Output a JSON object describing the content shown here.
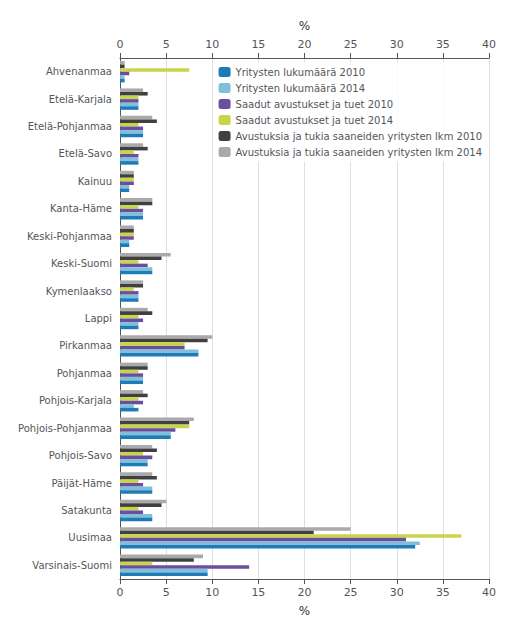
{
  "chart_data": {
    "type": "bar",
    "orientation": "horizontal",
    "xlabel": "%",
    "categories": [
      "Varsinais-Suomi",
      "Uusimaa",
      "Satakunta",
      "Päijät-Häme",
      "Pohjois-Savo",
      "Pohjois-Pohjanmaa",
      "Pohjois-Karjala",
      "Pohjanmaa",
      "Pirkanmaa",
      "Lappi",
      "Kymenlaakso",
      "Keski-Suomi",
      "Keski-Pohjanmaa",
      "Kanta-Häme",
      "Kainuu",
      "Etelä-Savo",
      "Etelä-Pohjanmaa",
      "Etelä-Karjala",
      "Ahvenanmaa"
    ],
    "series": [
      {
        "name": "Yritysten lukumäärä 2010",
        "color": "#1f7bb5",
        "values": [
          9.5,
          32.0,
          3.5,
          3.5,
          3.0,
          5.5,
          2.0,
          2.5,
          8.5,
          2.0,
          2.0,
          3.5,
          1.0,
          2.5,
          1.0,
          2.0,
          2.5,
          2.0,
          0.5
        ]
      },
      {
        "name": "Yritysten lukumäärä 2014",
        "color": "#7fbfda",
        "values": [
          9.5,
          32.5,
          3.5,
          3.5,
          3.0,
          5.5,
          1.5,
          2.5,
          8.5,
          2.0,
          2.0,
          3.5,
          1.0,
          2.5,
          1.0,
          2.0,
          2.5,
          2.0,
          0.5
        ]
      },
      {
        "name": "Saadut avustukset ja tuet 2010",
        "color": "#6b4f9e",
        "values": [
          14.0,
          31.0,
          2.5,
          2.5,
          3.5,
          6.0,
          2.5,
          2.5,
          7.0,
          2.5,
          2.0,
          3.0,
          1.5,
          2.5,
          1.5,
          2.0,
          2.5,
          2.0,
          1.0
        ]
      },
      {
        "name": "Saadut avustukset ja tuet 2014",
        "color": "#c8d44a",
        "values": [
          3.5,
          37.0,
          2.0,
          2.0,
          2.5,
          7.5,
          2.0,
          2.0,
          7.0,
          2.0,
          1.5,
          2.0,
          1.5,
          2.0,
          1.5,
          1.5,
          2.0,
          2.0,
          7.5
        ]
      },
      {
        "name": "Avustuksia ja tukia saaneiden yritysten lkm 2010",
        "color": "#404040",
        "values": [
          8.0,
          21.0,
          4.5,
          4.0,
          4.0,
          7.5,
          3.0,
          3.0,
          9.5,
          3.5,
          2.5,
          4.5,
          1.5,
          3.5,
          1.5,
          3.0,
          4.0,
          3.0,
          0.5
        ]
      },
      {
        "name": "Avustuksia ja tukia saaneiden yritysten lkm 2014",
        "color": "#aaaaaa",
        "values": [
          9.0,
          25.0,
          5.0,
          3.5,
          3.5,
          8.0,
          2.5,
          3.0,
          10.0,
          3.0,
          2.5,
          5.5,
          1.5,
          3.5,
          1.5,
          2.5,
          3.5,
          2.5,
          0.5
        ]
      }
    ],
    "xlim": [
      0,
      40
    ],
    "xticks": [
      0,
      5,
      10,
      15,
      20,
      25,
      30,
      35,
      40
    ],
    "grid": true,
    "legend": "upper right"
  }
}
